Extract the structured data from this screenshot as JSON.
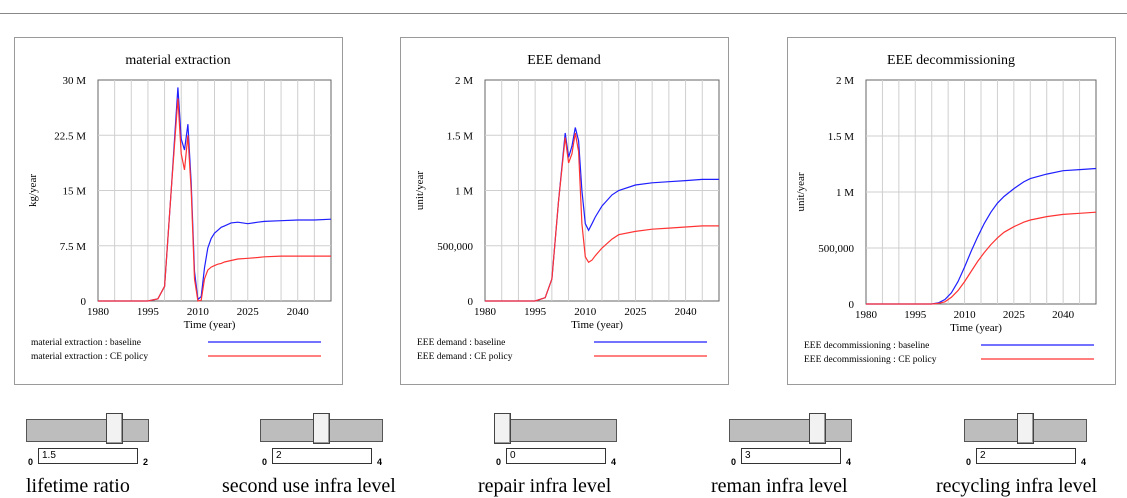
{
  "chart_data": [
    {
      "type": "line",
      "title": "material extraction",
      "xlabel": "Time (year)",
      "ylabel": "kg/year",
      "xlim": [
        1980,
        2050
      ],
      "ylim": [
        0,
        30000000
      ],
      "xticks": [
        1980,
        1995,
        2010,
        2025,
        2040
      ],
      "xtick_labels": [
        "1980",
        "1995",
        "2010",
        "2025",
        "2040"
      ],
      "yticks": [
        0,
        7500000,
        15000000,
        22500000,
        30000000
      ],
      "ytick_labels": [
        "0",
        "7.5 M",
        "15 M",
        "22.5 M",
        "30 M"
      ],
      "grid": true,
      "legend_position": "bottom",
      "series": [
        {
          "name": "material extraction : baseline",
          "color": "#1f1fff",
          "x": [
            1980,
            1990,
            1995,
            1998,
            2000,
            2002,
            2004,
            2005,
            2006,
            2007,
            2008,
            2009,
            2010,
            2011,
            2012,
            2013,
            2014,
            2015,
            2016,
            2017,
            2018,
            2020,
            2022,
            2025,
            2028,
            2030,
            2035,
            2040,
            2045,
            2050
          ],
          "y": [
            0,
            0,
            0,
            300000,
            2000000,
            15000000,
            29000000,
            22000000,
            20500000,
            24000000,
            16000000,
            4000000,
            200000,
            600000,
            4500000,
            7200000,
            8500000,
            9200000,
            9600000,
            10000000,
            10200000,
            10600000,
            10700000,
            10500000,
            10700000,
            10800000,
            10900000,
            11000000,
            11000000,
            11100000
          ]
        },
        {
          "name": "material extraction : CE policy",
          "color": "#ff3333",
          "x": [
            1980,
            1990,
            1995,
            1998,
            2000,
            2002,
            2004,
            2005,
            2006,
            2007,
            2008,
            2009,
            2010,
            2011,
            2012,
            2013,
            2014,
            2015,
            2016,
            2017,
            2018,
            2020,
            2022,
            2025,
            2028,
            2030,
            2035,
            2040,
            2045,
            2050
          ],
          "y": [
            0,
            0,
            0,
            300000,
            2000000,
            15000000,
            27500000,
            20000000,
            17800000,
            22500000,
            15000000,
            3000000,
            0,
            100000,
            3000000,
            4200000,
            4600000,
            4800000,
            5000000,
            5100000,
            5300000,
            5500000,
            5700000,
            5800000,
            5900000,
            6000000,
            6100000,
            6100000,
            6100000,
            6100000
          ]
        }
      ]
    },
    {
      "type": "line",
      "title": "EEE demand",
      "xlabel": "Time (year)",
      "ylabel": "unit/year",
      "xlim": [
        1980,
        2050
      ],
      "ylim": [
        0,
        2000000
      ],
      "xticks": [
        1980,
        1995,
        2010,
        2025,
        2040
      ],
      "xtick_labels": [
        "1980",
        "1995",
        "2010",
        "2025",
        "2040"
      ],
      "yticks": [
        0,
        500000,
        1000000,
        1500000,
        2000000
      ],
      "ytick_labels": [
        "0",
        "500,000",
        "1 M",
        "1.5 M",
        "2 M"
      ],
      "grid": true,
      "legend_position": "bottom",
      "series": [
        {
          "name": "EEE demand : baseline",
          "color": "#1f1fff",
          "x": [
            1980,
            1990,
            1995,
            1998,
            2000,
            2002,
            2004,
            2005,
            2006,
            2007,
            2008,
            2009,
            2010,
            2011,
            2012,
            2013,
            2015,
            2018,
            2020,
            2025,
            2030,
            2035,
            2040,
            2045,
            2050
          ],
          "y": [
            0,
            0,
            0,
            30000,
            200000,
            900000,
            1520000,
            1300000,
            1400000,
            1570000,
            1450000,
            1000000,
            700000,
            640000,
            700000,
            760000,
            860000,
            960000,
            1000000,
            1050000,
            1070000,
            1080000,
            1090000,
            1100000,
            1100000
          ]
        },
        {
          "name": "EEE demand : CE policy",
          "color": "#ff3333",
          "x": [
            1980,
            1990,
            1995,
            1998,
            2000,
            2002,
            2004,
            2005,
            2006,
            2007,
            2008,
            2009,
            2010,
            2011,
            2012,
            2013,
            2015,
            2018,
            2020,
            2025,
            2030,
            2035,
            2040,
            2045,
            2050
          ],
          "y": [
            0,
            0,
            0,
            30000,
            200000,
            900000,
            1480000,
            1250000,
            1330000,
            1520000,
            1350000,
            700000,
            400000,
            350000,
            370000,
            410000,
            480000,
            560000,
            600000,
            630000,
            650000,
            660000,
            670000,
            680000,
            680000
          ]
        }
      ]
    },
    {
      "type": "line",
      "title": "EEE decommissioning",
      "xlabel": "Time (year)",
      "ylabel": "unit/year",
      "xlim": [
        1980,
        2050
      ],
      "ylim": [
        0,
        2000000
      ],
      "xticks": [
        1980,
        1995,
        2010,
        2025,
        2040
      ],
      "xtick_labels": [
        "1980",
        "1995",
        "2010",
        "2025",
        "2040"
      ],
      "yticks": [
        0,
        500000,
        1000000,
        1500000,
        2000000
      ],
      "ytick_labels": [
        "0",
        "500,000",
        "1 M",
        "1.5 M",
        "2 M"
      ],
      "grid": true,
      "legend_position": "bottom",
      "series": [
        {
          "name": "EEE decommissioning : baseline",
          "color": "#1f1fff",
          "x": [
            1980,
            1995,
            2000,
            2002,
            2004,
            2006,
            2008,
            2010,
            2012,
            2014,
            2016,
            2018,
            2020,
            2022,
            2025,
            2028,
            2030,
            2035,
            2040,
            2045,
            2050
          ],
          "y": [
            0,
            0,
            0,
            10000,
            40000,
            100000,
            200000,
            330000,
            470000,
            600000,
            720000,
            820000,
            900000,
            960000,
            1030000,
            1090000,
            1120000,
            1160000,
            1190000,
            1200000,
            1210000
          ]
        },
        {
          "name": "EEE decommissioning : CE policy",
          "color": "#ff3333",
          "x": [
            1980,
            1995,
            2000,
            2002,
            2004,
            2006,
            2008,
            2010,
            2012,
            2014,
            2016,
            2018,
            2020,
            2022,
            2025,
            2028,
            2030,
            2035,
            2040,
            2045,
            2050
          ],
          "y": [
            0,
            0,
            0,
            5000,
            20000,
            60000,
            120000,
            200000,
            290000,
            380000,
            460000,
            530000,
            590000,
            640000,
            690000,
            730000,
            750000,
            780000,
            800000,
            810000,
            820000
          ]
        }
      ]
    }
  ],
  "sliders": [
    {
      "label": "lifetime ratio",
      "min": "0",
      "max": "2",
      "value": "1.5",
      "fraction": 0.75
    },
    {
      "label": "second use infra level",
      "min": "0",
      "max": "4",
      "value": "2",
      "fraction": 0.5
    },
    {
      "label": "repair infra level",
      "min": "0",
      "max": "4",
      "value": "0",
      "fraction": 0.0
    },
    {
      "label": "reman infra level",
      "min": "0",
      "max": "4",
      "value": "3",
      "fraction": 0.75
    },
    {
      "label": "recycling infra level",
      "min": "0",
      "max": "4",
      "value": "2",
      "fraction": 0.5
    }
  ]
}
